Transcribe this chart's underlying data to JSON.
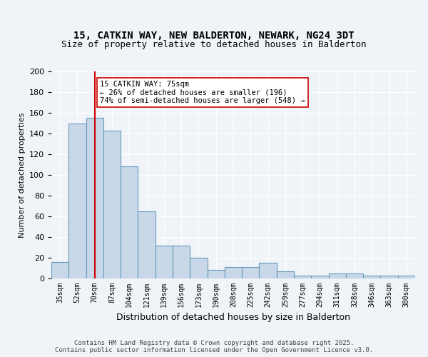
{
  "title_line1": "15, CATKIN WAY, NEW BALDERTON, NEWARK, NG24 3DT",
  "title_line2": "Size of property relative to detached houses in Balderton",
  "xlabel": "Distribution of detached houses by size in Balderton",
  "ylabel": "Number of detached properties",
  "categories": [
    "35sqm",
    "52sqm",
    "70sqm",
    "87sqm",
    "104sqm",
    "121sqm",
    "139sqm",
    "156sqm",
    "173sqm",
    "190sqm",
    "208sqm",
    "225sqm",
    "242sqm",
    "259sqm",
    "277sqm",
    "294sqm",
    "311sqm",
    "328sqm",
    "346sqm",
    "363sqm",
    "380sqm"
  ],
  "values": [
    16,
    150,
    155,
    143,
    108,
    65,
    32,
    32,
    20,
    8,
    11,
    11,
    15,
    7,
    3,
    3,
    5,
    5,
    3,
    3,
    3
  ],
  "bar_color": "#c8d8e8",
  "bar_edge_color": "#6699bb",
  "vline_x_index": 2,
  "vline_color": "#cc0000",
  "annotation_text": "15 CATKIN WAY: 75sqm\n← 26% of detached houses are smaller (196)\n74% of semi-detached houses are larger (548) →",
  "annotation_box_color": "#ffffff",
  "annotation_box_edge": "#cc0000",
  "bg_color": "#f0f4f8",
  "grid_color": "#ffffff",
  "footer_text": "Contains HM Land Registry data © Crown copyright and database right 2025.\nContains public sector information licensed under the Open Government Licence v3.0.",
  "ylim": [
    0,
    200
  ]
}
